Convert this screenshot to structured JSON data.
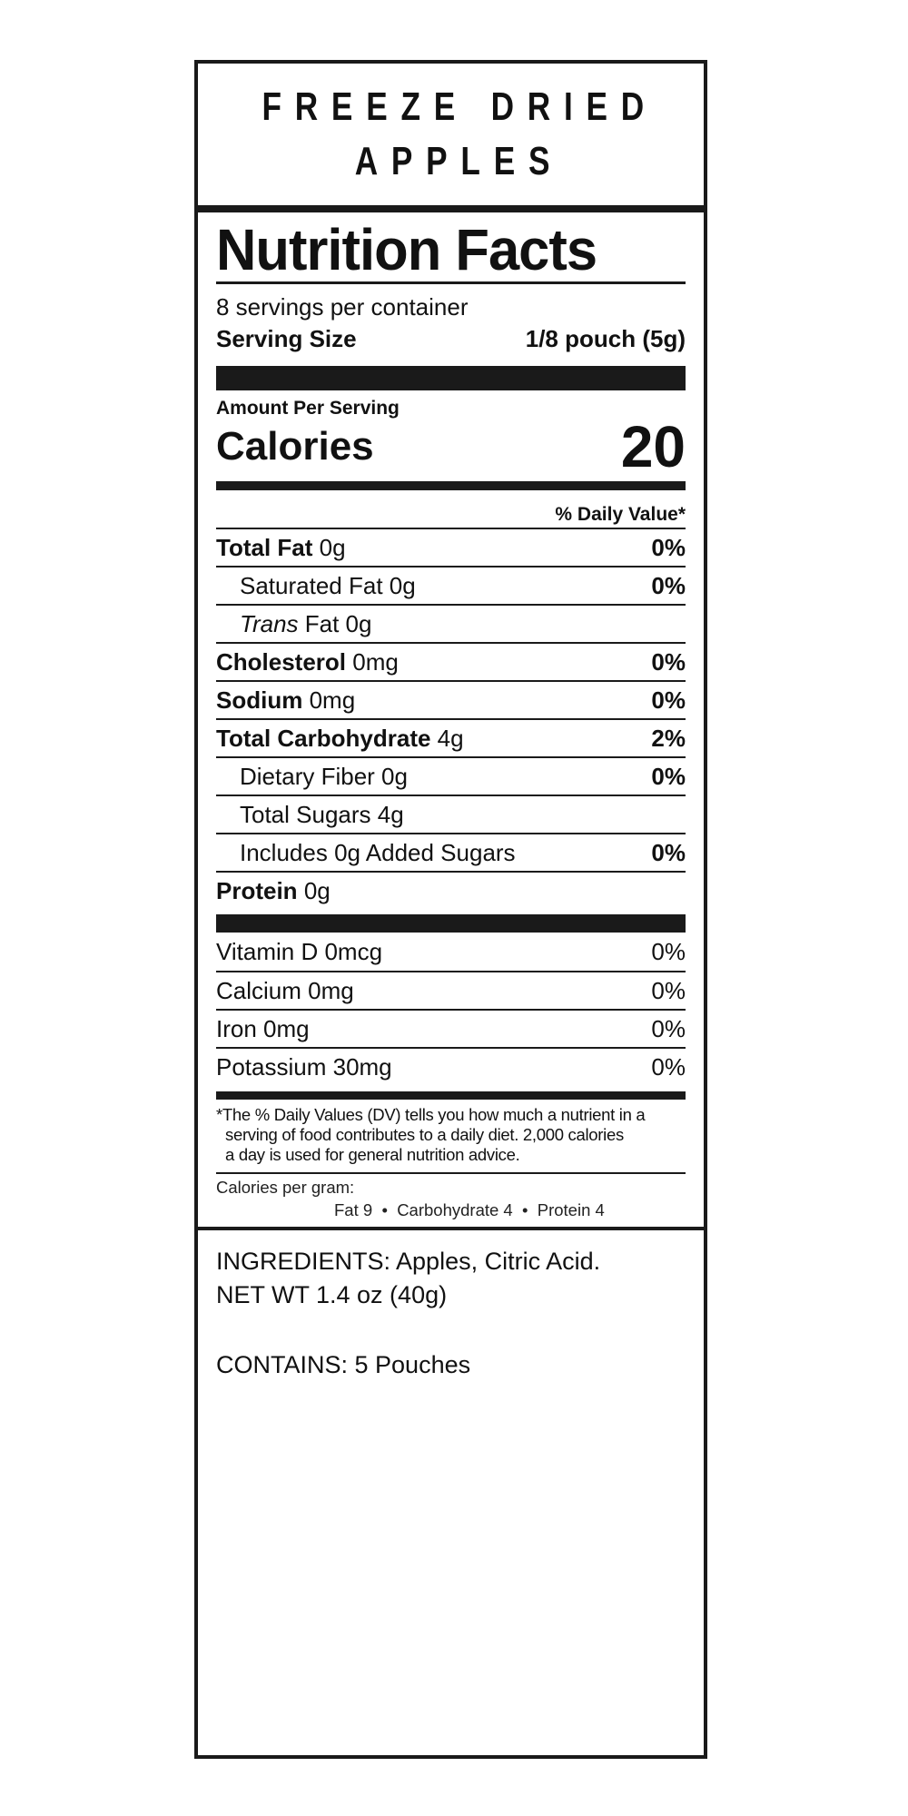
{
  "product": {
    "title_line1": "FREEZE DRIED",
    "title_line2": "APPLES"
  },
  "nutrition": {
    "heading": "Nutrition Facts",
    "servings_per_container": "8 servings per container",
    "serving_size_label": "Serving Size",
    "serving_size_value": "1/8 pouch (5g)",
    "amount_per_serving": "Amount Per Serving",
    "calories_label": "Calories",
    "calories_value": "20",
    "daily_value_header": "% Daily Value*",
    "rows": [
      {
        "name": "Total Fat",
        "amount": "0g",
        "dv": "0%"
      },
      {
        "name": "Saturated Fat 0g",
        "amount": "",
        "dv": "0%"
      },
      {
        "name_italic": "Trans",
        "name": "Fat 0g",
        "dv": ""
      },
      {
        "name": "Cholesterol",
        "amount": "0mg",
        "dv": "0%"
      },
      {
        "name": "Sodium",
        "amount": "0mg",
        "dv": "0%"
      },
      {
        "name": "Total Carbohydrate",
        "amount": "4g",
        "dv": "2%"
      },
      {
        "name": "Dietary Fiber 0g",
        "dv": "0%"
      },
      {
        "name": "Total Sugars 4g",
        "dv": ""
      },
      {
        "name": "Includes 0g Added Sugars",
        "dv": "0%"
      },
      {
        "name": "Protein",
        "amount": "0g",
        "dv": ""
      }
    ],
    "vitamins": [
      {
        "name": "Vitamin D 0mcg",
        "dv": "0%"
      },
      {
        "name": "Calcium 0mg",
        "dv": "0%"
      },
      {
        "name": "Iron 0mg",
        "dv": "0%"
      },
      {
        "name": "Potassium 30mg",
        "dv": "0%"
      }
    ],
    "footnote_line1": "*The % Daily Values (DV) tells you how much a nutrient in a",
    "footnote_line2": "serving of food contributes to a daily diet. 2,000 calories",
    "footnote_line3": "a day is used for general nutrition advice.",
    "calories_per_gram_label": "Calories per gram:",
    "calories_per_gram_values": "Fat 9  •  Carbohydrate 4  •  Protein 4"
  },
  "ingredients": {
    "line": "INGREDIENTS: Apples, Citric Acid.",
    "net_wt": "NET WT 1.4 oz (40g)",
    "contains": "CONTAINS: 5 Pouches"
  }
}
